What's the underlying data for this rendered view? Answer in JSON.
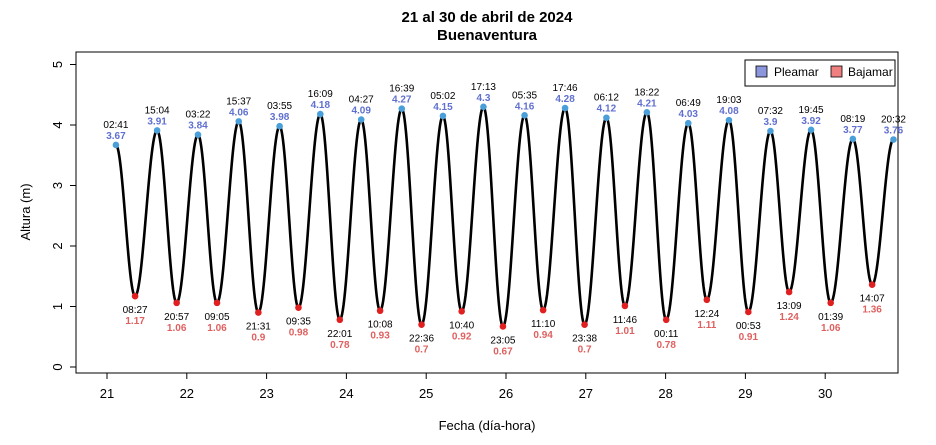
{
  "chart_data": {
    "type": "line",
    "title": "21 al 30 de abril de 2024",
    "subtitle": "Buenaventura",
    "xlabel": "Fecha (día-hora)",
    "ylabel": "Altura (m)",
    "ylim": [
      0,
      5
    ],
    "yticks": [
      "0",
      "1",
      "2",
      "3",
      "4",
      "5"
    ],
    "xticks": [
      {
        "day": 21,
        "label": "21"
      },
      {
        "day": 22,
        "label": "22"
      },
      {
        "day": 23,
        "label": "23"
      },
      {
        "day": 24,
        "label": "24"
      },
      {
        "day": 25,
        "label": "25"
      },
      {
        "day": 26,
        "label": "26"
      },
      {
        "day": 27,
        "label": "27"
      },
      {
        "day": 28,
        "label": "28"
      },
      {
        "day": 29,
        "label": "29"
      },
      {
        "day": 30,
        "label": "30"
      }
    ],
    "legend": {
      "placement": "top-right",
      "entries": [
        {
          "label": "Pleamar",
          "color": "#8c96dc"
        },
        {
          "label": "Bajamar",
          "color": "#f08080"
        }
      ]
    },
    "colors": {
      "curve": "#000000",
      "high_point": "#4a9fd8",
      "low_point": "#e02020",
      "high_text": "#6070d0",
      "low_text": "#e06060"
    },
    "events": [
      {
        "type": "high",
        "day": 21,
        "time": "02:41",
        "value": "3.67"
      },
      {
        "type": "low",
        "day": 21,
        "time": "08:27",
        "value": "1.17"
      },
      {
        "type": "high",
        "day": 21,
        "time": "15:04",
        "value": "3.91"
      },
      {
        "type": "low",
        "day": 21,
        "time": "20:57",
        "value": "1.06"
      },
      {
        "type": "high",
        "day": 22,
        "time": "03:22",
        "value": "3.84"
      },
      {
        "type": "low",
        "day": 22,
        "time": "09:05",
        "value": "1.06"
      },
      {
        "type": "high",
        "day": 22,
        "time": "15:37",
        "value": "4.06"
      },
      {
        "type": "low",
        "day": 22,
        "time": "21:31",
        "value": "0.9"
      },
      {
        "type": "high",
        "day": 23,
        "time": "03:55",
        "value": "3.98"
      },
      {
        "type": "low",
        "day": 23,
        "time": "09:35",
        "value": "0.98"
      },
      {
        "type": "high",
        "day": 23,
        "time": "16:09",
        "value": "4.18"
      },
      {
        "type": "low",
        "day": 23,
        "time": "22:01",
        "value": "0.78"
      },
      {
        "type": "high",
        "day": 24,
        "time": "04:27",
        "value": "4.09"
      },
      {
        "type": "low",
        "day": 24,
        "time": "10:08",
        "value": "0.93"
      },
      {
        "type": "high",
        "day": 24,
        "time": "16:39",
        "value": "4.27"
      },
      {
        "type": "low",
        "day": 24,
        "time": "22:36",
        "value": "0.7"
      },
      {
        "type": "high",
        "day": 25,
        "time": "05:02",
        "value": "4.15"
      },
      {
        "type": "low",
        "day": 25,
        "time": "10:40",
        "value": "0.92"
      },
      {
        "type": "high",
        "day": 25,
        "time": "17:13",
        "value": "4.3"
      },
      {
        "type": "low",
        "day": 25,
        "time": "23:05",
        "value": "0.67"
      },
      {
        "type": "high",
        "day": 26,
        "time": "05:35",
        "value": "4.16"
      },
      {
        "type": "low",
        "day": 26,
        "time": "11:10",
        "value": "0.94"
      },
      {
        "type": "high",
        "day": 26,
        "time": "17:46",
        "value": "4.28"
      },
      {
        "type": "low",
        "day": 26,
        "time": "23:38",
        "value": "0.7"
      },
      {
        "type": "high",
        "day": 27,
        "time": "06:12",
        "value": "4.12"
      },
      {
        "type": "low",
        "day": 27,
        "time": "11:46",
        "value": "1.01"
      },
      {
        "type": "high",
        "day": 27,
        "time": "18:22",
        "value": "4.21"
      },
      {
        "type": "low",
        "day": 28,
        "time": "00:11",
        "value": "0.78"
      },
      {
        "type": "high",
        "day": 28,
        "time": "06:49",
        "value": "4.03"
      },
      {
        "type": "low",
        "day": 28,
        "time": "12:24",
        "value": "1.11"
      },
      {
        "type": "high",
        "day": 28,
        "time": "19:03",
        "value": "4.08"
      },
      {
        "type": "low",
        "day": 29,
        "time": "00:53",
        "value": "0.91"
      },
      {
        "type": "high",
        "day": 29,
        "time": "07:32",
        "value": "3.9"
      },
      {
        "type": "low",
        "day": 29,
        "time": "13:09",
        "value": "1.24"
      },
      {
        "type": "high",
        "day": 29,
        "time": "19:45",
        "value": "3.92"
      },
      {
        "type": "low",
        "day": 30,
        "time": "01:39",
        "value": "1.06"
      },
      {
        "type": "high",
        "day": 30,
        "time": "08:19",
        "value": "3.77"
      },
      {
        "type": "low",
        "day": 30,
        "time": "14:07",
        "value": "1.36"
      },
      {
        "type": "high",
        "day": 30,
        "time": "20:32",
        "value": "3.76"
      }
    ]
  }
}
